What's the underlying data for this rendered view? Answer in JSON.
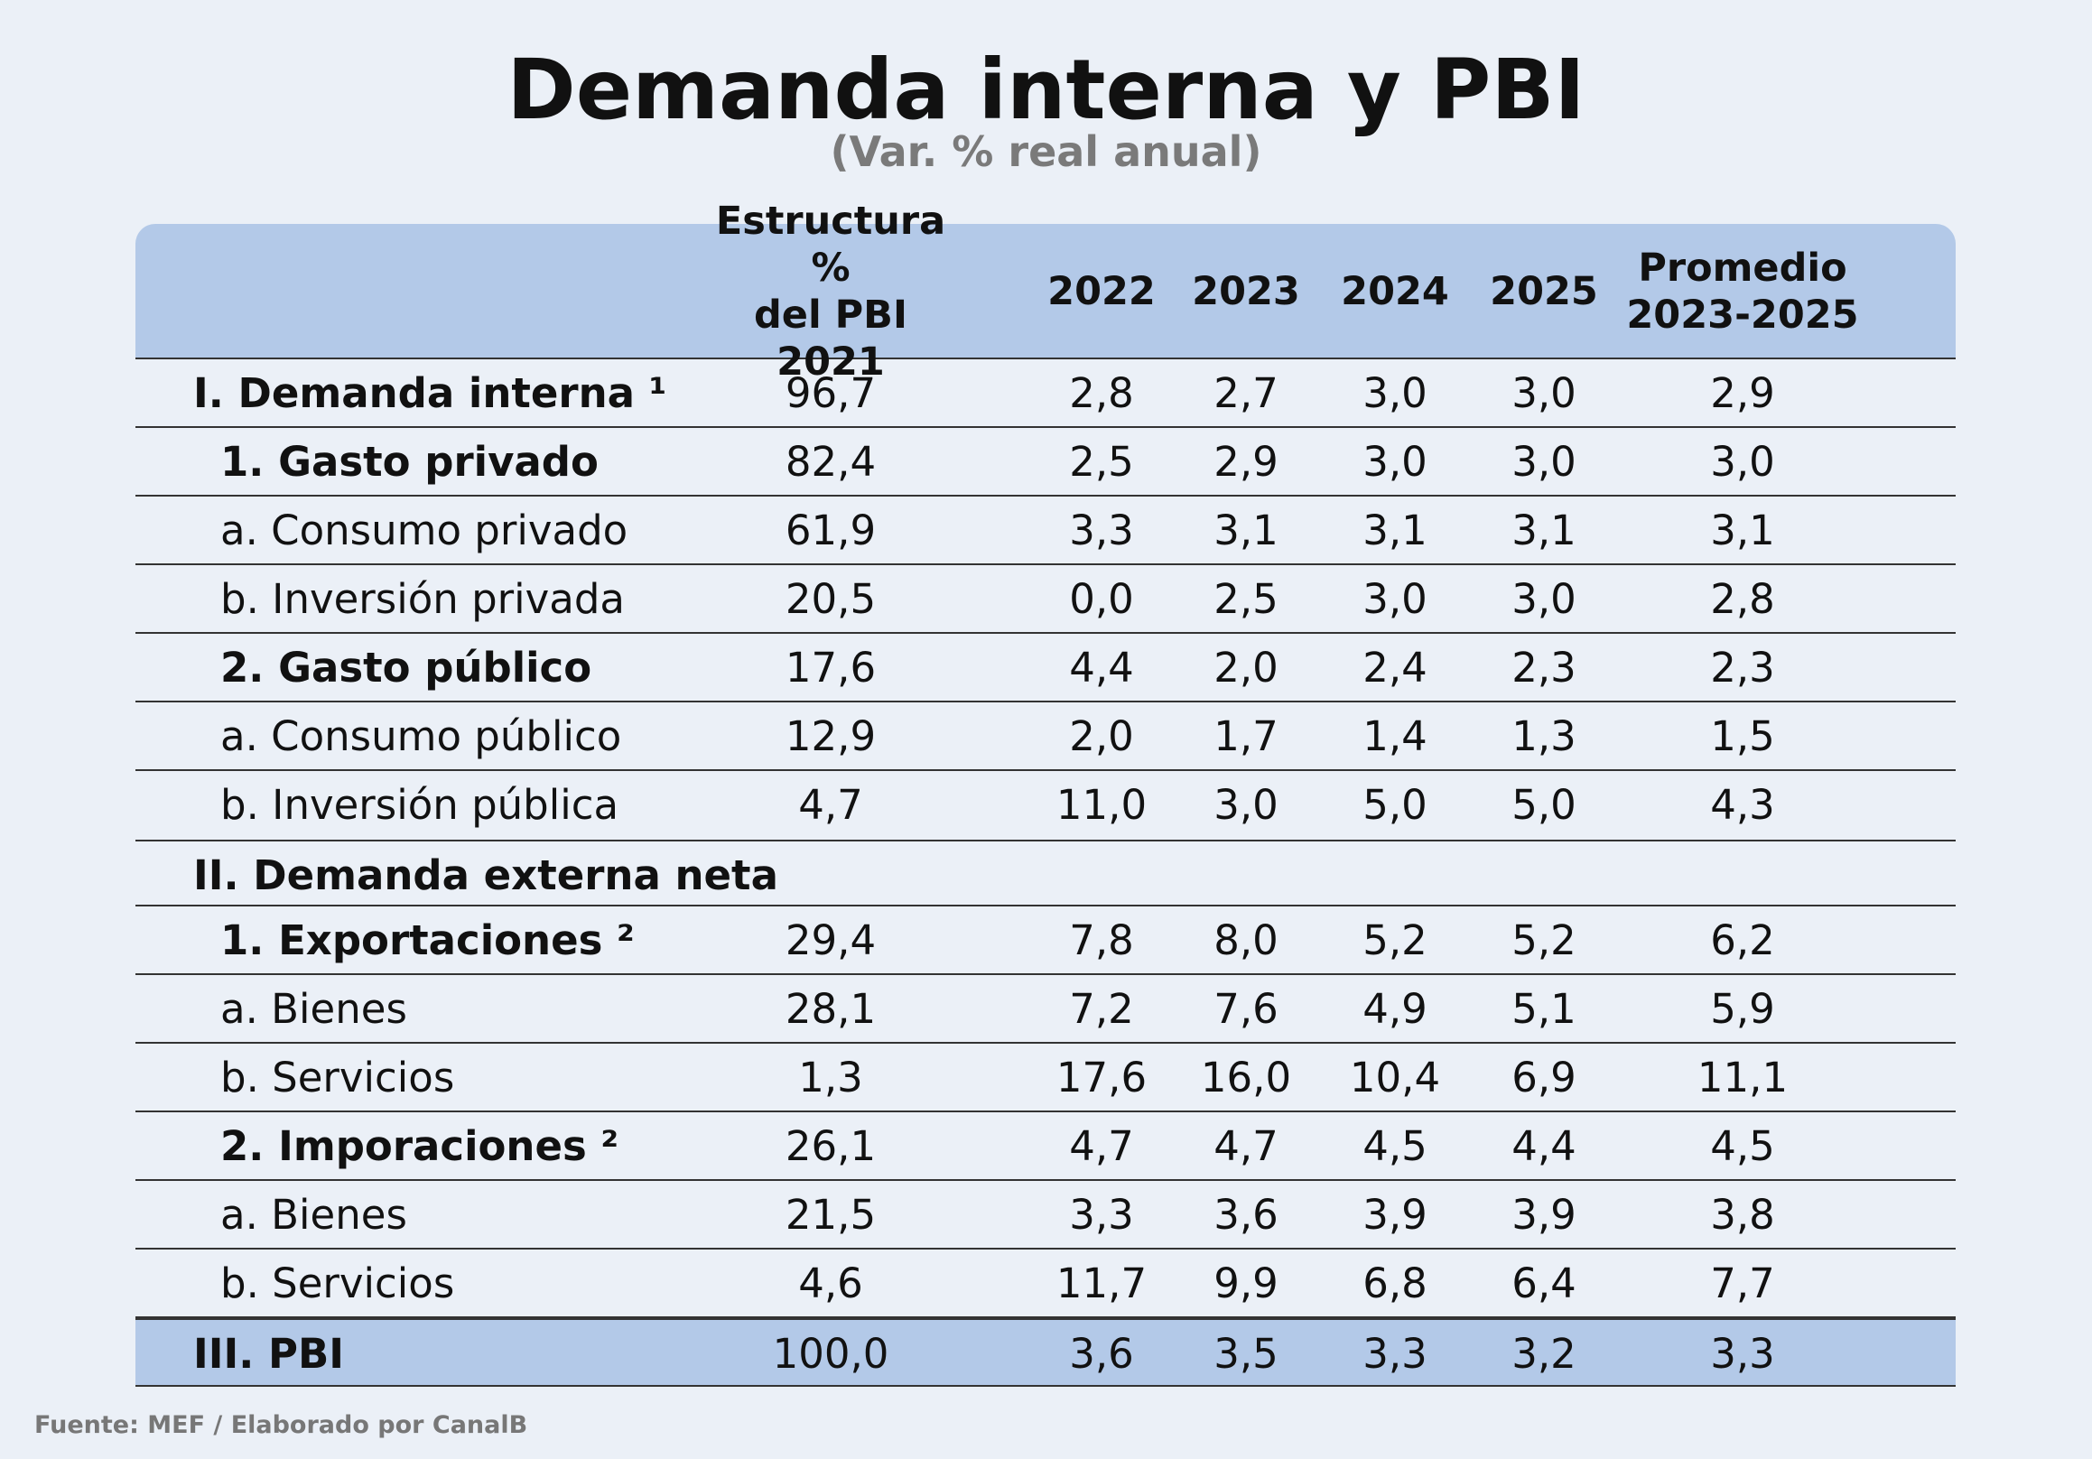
{
  "title": "Demanda interna y PBI",
  "subtitle": "(Var. % real anual)",
  "source": "Fuente: MEF / Elaborado por CanalB",
  "colors": {
    "background": "#ebf0f7",
    "header": "#b3c9e8",
    "highlight_row": "#b3c9e8",
    "subtitle": "#7a7a7a"
  },
  "chart_data": {
    "type": "table",
    "columns": [
      {
        "key": "label",
        "lines": [
          "",
          ""
        ]
      },
      {
        "key": "estructura",
        "lines": [
          "Estructura %",
          "del PBI 2021"
        ]
      },
      {
        "key": "y2022",
        "lines": [
          "2022",
          ""
        ]
      },
      {
        "key": "y2023",
        "lines": [
          "2023",
          ""
        ]
      },
      {
        "key": "y2024",
        "lines": [
          "2024",
          ""
        ]
      },
      {
        "key": "y2025",
        "lines": [
          "2025",
          ""
        ]
      },
      {
        "key": "promedio",
        "lines": [
          "Promedio",
          "2023-2025"
        ]
      }
    ],
    "rows": [
      {
        "label": "I. Demanda interna ¹",
        "level": 0,
        "bold": true,
        "values": [
          "96,7",
          "2,8",
          "2,7",
          "3,0",
          "3,0",
          "2,9"
        ]
      },
      {
        "label": "1. Gasto privado",
        "level": 1,
        "bold": true,
        "values": [
          "82,4",
          "2,5",
          "2,9",
          "3,0",
          "3,0",
          "3,0"
        ]
      },
      {
        "label": "a. Consumo privado",
        "level": 1,
        "bold": false,
        "values": [
          "61,9",
          "3,3",
          "3,1",
          "3,1",
          "3,1",
          "3,1"
        ]
      },
      {
        "label": "b. Inversión privada",
        "level": 1,
        "bold": false,
        "values": [
          "20,5",
          "0,0",
          "2,5",
          "3,0",
          "3,0",
          "2,8"
        ]
      },
      {
        "label": "2. Gasto público",
        "level": 1,
        "bold": true,
        "values": [
          "17,6",
          "4,4",
          "2,0",
          "2,4",
          "2,3",
          "2,3"
        ]
      },
      {
        "label": "a. Consumo público",
        "level": 1,
        "bold": false,
        "values": [
          "12,9",
          "2,0",
          "1,7",
          "1,4",
          "1,3",
          "1,5"
        ]
      },
      {
        "label": "b. Inversión pública",
        "level": 1,
        "bold": false,
        "values": [
          "4,7",
          "11,0",
          "3,0",
          "5,0",
          "5,0",
          "4,3"
        ]
      },
      {
        "label": "II. Demanda externa neta",
        "level": 0,
        "bold": true,
        "values": [
          "",
          "",
          "",
          "",
          "",
          ""
        ]
      },
      {
        "label": "1. Exportaciones ²",
        "level": 1,
        "bold": true,
        "values": [
          "29,4",
          "7,8",
          "8,0",
          "5,2",
          "5,2",
          "6,2"
        ]
      },
      {
        "label": "a. Bienes",
        "level": 1,
        "bold": false,
        "values": [
          "28,1",
          "7,2",
          "7,6",
          "4,9",
          "5,1",
          "5,9"
        ]
      },
      {
        "label": "b. Servicios",
        "level": 1,
        "bold": false,
        "values": [
          "1,3",
          "17,6",
          "16,0",
          "10,4",
          "6,9",
          "11,1"
        ]
      },
      {
        "label": "2. Imporaciones ²",
        "level": 1,
        "bold": true,
        "values": [
          "26,1",
          "4,7",
          "4,7",
          "4,5",
          "4,4",
          "4,5"
        ]
      },
      {
        "label": "a. Bienes",
        "level": 1,
        "bold": false,
        "values": [
          "21,5",
          "3,3",
          "3,6",
          "3,9",
          "3,9",
          "3,8"
        ]
      },
      {
        "label": "b. Servicios",
        "level": 1,
        "bold": false,
        "values": [
          "4,6",
          "11,7",
          "9,9",
          "6,8",
          "6,4",
          "7,7"
        ]
      },
      {
        "label": "III. PBI",
        "level": 0,
        "bold": true,
        "highlight": true,
        "values": [
          "100,0",
          "3,6",
          "3,5",
          "3,3",
          "3,2",
          "3,3"
        ]
      }
    ]
  }
}
